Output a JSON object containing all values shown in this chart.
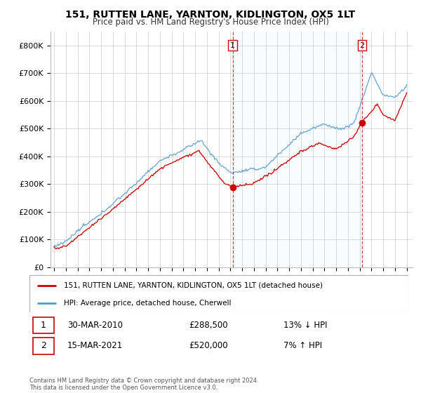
{
  "title": "151, RUTTEN LANE, YARNTON, KIDLINGTON, OX5 1LT",
  "subtitle": "Price paid vs. HM Land Registry's House Price Index (HPI)",
  "legend_line1": "151, RUTTEN LANE, YARNTON, KIDLINGTON, OX5 1LT (detached house)",
  "legend_line2": "HPI: Average price, detached house, Cherwell",
  "footer": "Contains HM Land Registry data © Crown copyright and database right 2024.\nThis data is licensed under the Open Government Licence v3.0.",
  "sale1_date": "30-MAR-2010",
  "sale1_price": "£288,500",
  "sale1_hpi": "13% ↓ HPI",
  "sale2_date": "15-MAR-2021",
  "sale2_price": "£520,000",
  "sale2_hpi": "7% ↑ HPI",
  "sale1_x": 2010.2,
  "sale1_y": 288500,
  "sale2_x": 2021.2,
  "sale2_y": 520000,
  "red_color": "#cc0000",
  "blue_color": "#5599cc",
  "shade_color": "#ddeeff",
  "dashed_color": "#cc3333",
  "ylim_min": 0,
  "ylim_max": 850000,
  "xlim_min": 1994.7,
  "xlim_max": 2025.5,
  "yticks": [
    0,
    100000,
    200000,
    300000,
    400000,
    500000,
    600000,
    700000,
    800000
  ],
  "ytick_labels": [
    "£0",
    "£100K",
    "£200K",
    "£300K",
    "£400K",
    "£500K",
    "£600K",
    "£700K",
    "£800K"
  ],
  "xticks": [
    1995,
    1996,
    1997,
    1998,
    1999,
    2000,
    2001,
    2002,
    2003,
    2004,
    2005,
    2006,
    2007,
    2008,
    2009,
    2010,
    2011,
    2012,
    2013,
    2014,
    2015,
    2016,
    2017,
    2018,
    2019,
    2020,
    2021,
    2022,
    2023,
    2024,
    2025
  ],
  "fig_width": 6.0,
  "fig_height": 5.6,
  "dpi": 100
}
